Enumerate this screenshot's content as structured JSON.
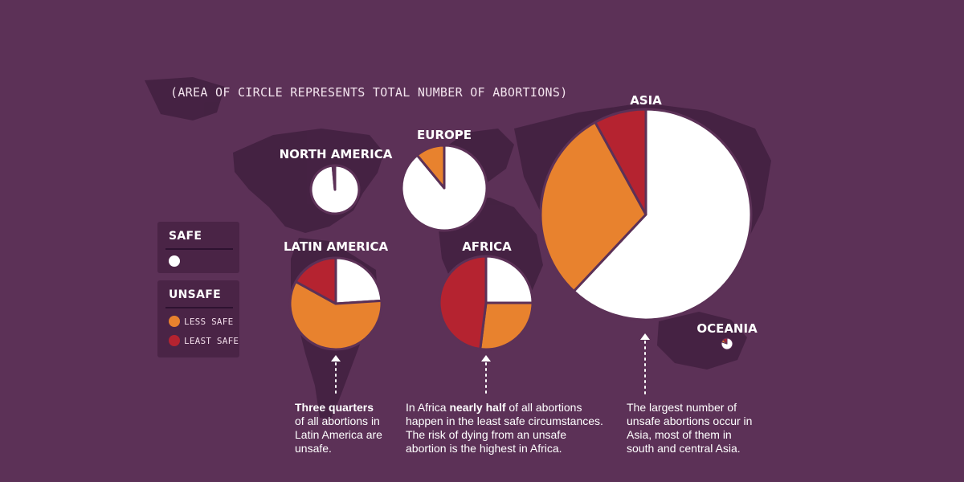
{
  "subtitle": "(AREA OF CIRCLE REPRESENTS TOTAL NUMBER OF ABORTIONS)",
  "legend": {
    "safe_header": "SAFE",
    "unsafe_header": "UNSAFE",
    "less_safe_label": "LESS SAFE",
    "least_safe_label": "LEAST SAFE"
  },
  "colors": {
    "background": "#5c3157",
    "safe": "#ffffff",
    "less_safe": "#e8822e",
    "least_safe": "#b52330"
  },
  "notes": {
    "latin_america": {
      "bold": "Three quarters",
      "rest": "of all abortions in Latin America are unsafe."
    },
    "africa": {
      "pre": "In Africa ",
      "bold": "nearly half",
      "rest": " of all abortions happen in the least safe circumstances. The risk of dying from an unsafe abortion is the highest in Africa."
    },
    "asia": {
      "text": "The largest number of unsafe abortions occur in Asia, most of them in south and central Asia."
    }
  },
  "chart_data": [
    {
      "type": "pie",
      "region": "NORTH AMERICA",
      "slices": [
        {
          "label": "SAFE",
          "value": 98.5
        },
        {
          "label": "LESS SAFE",
          "value": 1.5
        },
        {
          "label": "LEAST SAFE",
          "value": 0
        }
      ]
    },
    {
      "type": "pie",
      "region": "EUROPE",
      "slices": [
        {
          "label": "SAFE",
          "value": 89
        },
        {
          "label": "LESS SAFE",
          "value": 11
        },
        {
          "label": "LEAST SAFE",
          "value": 0
        }
      ]
    },
    {
      "type": "pie",
      "region": "LATIN AMERICA",
      "slices": [
        {
          "label": "SAFE",
          "value": 24
        },
        {
          "label": "LESS SAFE",
          "value": 59
        },
        {
          "label": "LEAST SAFE",
          "value": 17
        }
      ]
    },
    {
      "type": "pie",
      "region": "AFRICA",
      "slices": [
        {
          "label": "SAFE",
          "value": 25
        },
        {
          "label": "LESS SAFE",
          "value": 27
        },
        {
          "label": "LEAST SAFE",
          "value": 48
        }
      ]
    },
    {
      "type": "pie",
      "region": "ASIA",
      "slices": [
        {
          "label": "SAFE",
          "value": 62
        },
        {
          "label": "LESS SAFE",
          "value": 30
        },
        {
          "label": "LEAST SAFE",
          "value": 8
        }
      ]
    },
    {
      "type": "pie",
      "region": "OCEANIA",
      "slices": [
        {
          "label": "SAFE",
          "value": 80
        },
        {
          "label": "LESS SAFE",
          "value": 8
        },
        {
          "label": "LEAST SAFE",
          "value": 12
        }
      ]
    }
  ]
}
